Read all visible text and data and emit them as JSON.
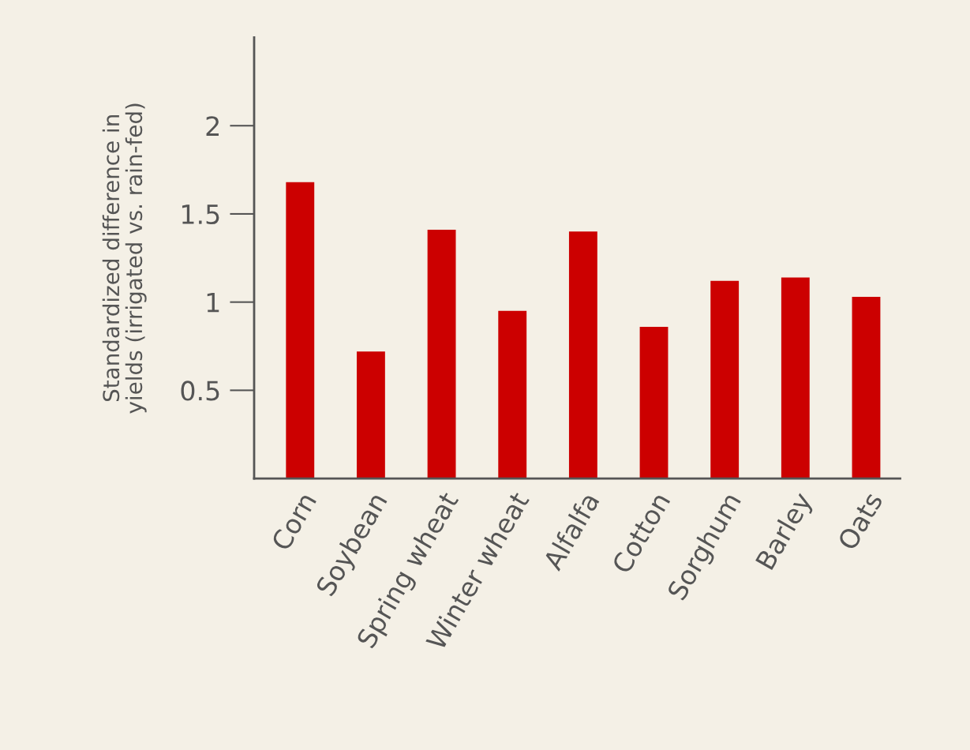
{
  "chart_data": {
    "type": "bar",
    "ylabel": "Standardized difference in\nyields (irrigated vs. rain-fed)",
    "categories": [
      "Corn",
      "Soybean",
      "Spring wheat",
      "Winter wheat",
      "Alfalfa",
      "Cotton",
      "Sorghum",
      "Barley",
      "Oats"
    ],
    "values": [
      1.68,
      0.72,
      1.41,
      0.95,
      1.4,
      0.86,
      1.12,
      1.14,
      1.03
    ],
    "color": "#cc0000",
    "ylim": [
      0,
      2.5
    ],
    "yticks": [
      0.5,
      1,
      1.5,
      2
    ],
    "grid": false,
    "legend": false
  }
}
